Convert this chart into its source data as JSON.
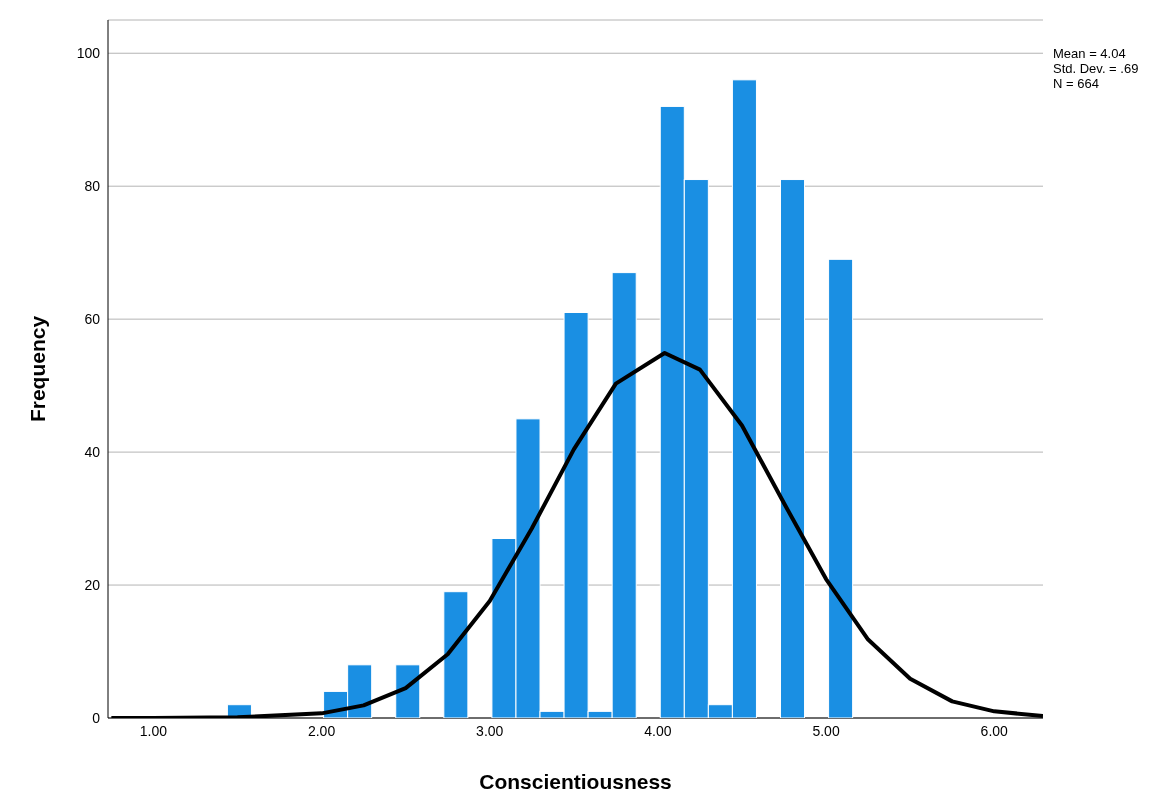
{
  "chart_data": {
    "type": "histogram",
    "xlabel": "Conscientiousness",
    "ylabel": "Frequency",
    "bins": [
      1.44,
      1.583,
      1.726,
      1.869,
      2.012,
      2.155,
      2.298,
      2.441,
      2.584,
      2.727,
      2.87,
      3.013,
      3.156,
      3.299,
      3.442,
      3.585,
      3.728,
      3.871,
      4.014,
      4.157,
      4.3,
      4.443,
      4.586,
      4.729,
      4.872,
      5.015,
      5.158
    ],
    "values": [
      2,
      0,
      0,
      0,
      4,
      8,
      0,
      8,
      0,
      19,
      0,
      27,
      45,
      1,
      61,
      1,
      67,
      0,
      92,
      81,
      2,
      96,
      0,
      81,
      0,
      69
    ],
    "color": "#1a8fe3",
    "series": [
      {
        "type": "line",
        "color": "#000000",
        "x": [
          0.75,
          1.0,
          1.5,
          2.0,
          2.25,
          2.5,
          2.75,
          3.0,
          3.25,
          3.5,
          3.75,
          4.04,
          4.25,
          4.5,
          4.75,
          5.0,
          5.25,
          5.5,
          5.75,
          6.0,
          6.29
        ],
        "values": [
          0,
          0,
          0.1,
          0.7,
          1.9,
          4.5,
          9.6,
          17.6,
          28.5,
          40.4,
          50.3,
          54.9,
          52.4,
          44.0,
          32.3,
          20.9,
          11.8,
          5.9,
          2.5,
          1.0,
          0.3
        ]
      }
    ],
    "xlim": [
      0.73,
      6.29
    ],
    "ylim": [
      0,
      105
    ],
    "xticks": [
      {
        "value": 1,
        "label": "1.00"
      },
      {
        "value": 2,
        "label": "2.00"
      },
      {
        "value": 3,
        "label": "3.00"
      },
      {
        "value": 4,
        "label": "4.00"
      },
      {
        "value": 5,
        "label": "5.00"
      },
      {
        "value": 6,
        "label": "6.00"
      }
    ],
    "yticks": [
      0,
      20,
      40,
      60,
      80,
      100
    ],
    "grid": "y",
    "annotations": [
      "Mean = 4.04",
      "Std. Dev. = .69",
      "N = 664"
    ]
  }
}
